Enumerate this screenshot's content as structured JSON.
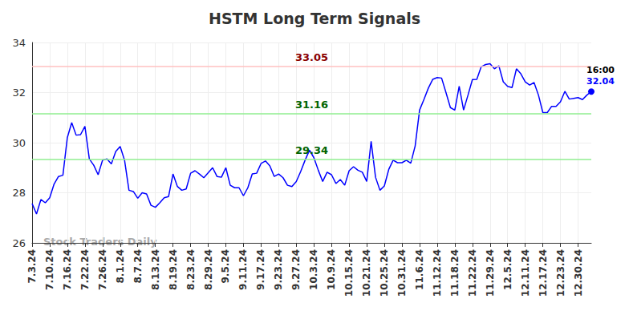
{
  "chart_data": {
    "type": "line",
    "title": "HSTM Long Term Signals",
    "categories": [
      "7.3.24",
      null,
      null,
      null,
      "7.10.24",
      null,
      null,
      null,
      "7.16.24",
      null,
      null,
      null,
      "7.22.24",
      null,
      null,
      null,
      "7.26.24",
      null,
      null,
      null,
      "8.1.24",
      null,
      null,
      null,
      "8.7.24",
      null,
      null,
      null,
      "8.13.24",
      null,
      null,
      null,
      "8.19.24",
      null,
      null,
      null,
      "8.23.24",
      null,
      null,
      null,
      "8.29.24",
      null,
      null,
      null,
      "9.5.24",
      null,
      null,
      null,
      "9.11.24",
      null,
      null,
      null,
      "9.17.24",
      null,
      null,
      null,
      "9.23.24",
      null,
      null,
      null,
      "9.27.24",
      null,
      null,
      null,
      "10.3.24",
      null,
      null,
      null,
      "10.9.24",
      null,
      null,
      null,
      "10.15.24",
      null,
      null,
      null,
      "10.21.24",
      null,
      null,
      null,
      "10.25.24",
      null,
      null,
      null,
      "10.31.24",
      null,
      null,
      null,
      "11.6.24",
      null,
      null,
      null,
      "11.12.24",
      null,
      null,
      null,
      "11.18.24",
      null,
      null,
      null,
      "11.22.24",
      null,
      null,
      null,
      "11.29.24",
      null,
      null,
      null,
      "12.5.24",
      null,
      null,
      null,
      "12.11.24",
      null,
      null,
      null,
      "12.17.24",
      null,
      null,
      null,
      "12.23.24",
      null,
      null,
      null,
      "12.30.24",
      null,
      null,
      null
    ],
    "values": [
      27.57,
      27.15,
      27.73,
      27.6,
      27.8,
      28.35,
      28.65,
      28.7,
      30.2,
      30.8,
      30.3,
      30.32,
      30.65,
      29.35,
      29.1,
      28.72,
      29.3,
      29.35,
      29.15,
      29.65,
      29.85,
      29.3,
      28.1,
      28.05,
      27.78,
      28.0,
      27.95,
      27.5,
      27.42,
      27.6,
      27.8,
      27.85,
      28.75,
      28.25,
      28.1,
      28.15,
      28.78,
      28.88,
      28.75,
      28.6,
      28.8,
      29.0,
      28.65,
      28.62,
      29.0,
      28.3,
      28.2,
      28.2,
      27.88,
      28.2,
      28.75,
      28.78,
      29.17,
      29.27,
      29.07,
      28.65,
      28.75,
      28.6,
      28.3,
      28.25,
      28.45,
      28.85,
      29.3,
      29.7,
      29.4,
      28.9,
      28.45,
      28.82,
      28.72,
      28.37,
      28.53,
      28.3,
      28.88,
      29.04,
      28.9,
      28.82,
      28.45,
      30.05,
      28.62,
      28.1,
      28.27,
      28.93,
      29.3,
      29.2,
      29.2,
      29.3,
      29.18,
      29.87,
      31.3,
      31.73,
      32.18,
      32.53,
      32.6,
      32.58,
      32.0,
      31.4,
      31.3,
      32.25,
      31.3,
      31.9,
      32.52,
      32.53,
      33.03,
      33.12,
      33.15,
      32.95,
      33.07,
      32.43,
      32.25,
      32.2,
      32.95,
      32.75,
      32.43,
      32.3,
      32.4,
      31.9,
      31.2,
      31.2,
      31.45,
      31.45,
      31.63,
      32.05,
      31.74,
      31.77,
      31.8,
      31.72,
      31.9,
      32.04
    ],
    "color": "#0000ff",
    "ylim": [
      26,
      34
    ],
    "yticks": [
      26,
      28,
      30,
      32,
      34
    ],
    "grid": true,
    "horizontal_lines": [
      {
        "value": 33.05,
        "color": "#ffc0c0",
        "label_color": "#8b0000"
      },
      {
        "value": 31.16,
        "color": "#90ee90",
        "label_color": "#006400"
      },
      {
        "value": 29.34,
        "color": "#90ee90",
        "label_color": "#006400"
      }
    ],
    "time_label": "16:00",
    "watermark": "Stock Traders Daily"
  }
}
